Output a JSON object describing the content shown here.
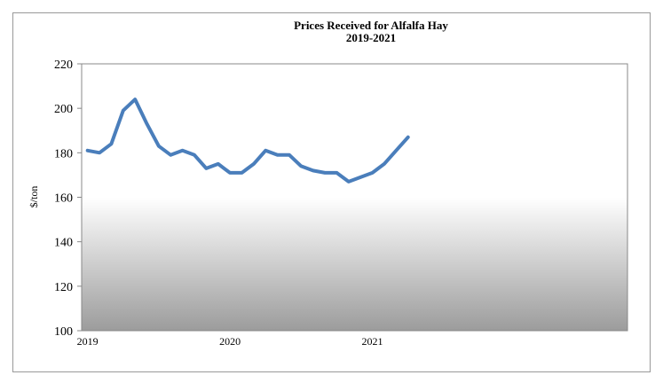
{
  "chart_data": {
    "type": "line",
    "title": "Prices Received for Alfalfa Hay",
    "subtitle": "2019-2021",
    "y_label": "$/ton",
    "categories": [
      "2019",
      null,
      null,
      null,
      null,
      null,
      null,
      null,
      null,
      null,
      null,
      null,
      "2020",
      null,
      null,
      null,
      null,
      null,
      null,
      null,
      null,
      null,
      null,
      null,
      "2021",
      null,
      null,
      null,
      null,
      null,
      null,
      null,
      null,
      null,
      null,
      null,
      null,
      null,
      null,
      null,
      null,
      null,
      null,
      null,
      null,
      null
    ],
    "series": [
      {
        "name": "Alfalfa Hay",
        "color": "#4a7ebb",
        "values": [
          181,
          180,
          184,
          199,
          204,
          193,
          183,
          179,
          181,
          179,
          173,
          175,
          171,
          171,
          175,
          181,
          179,
          179,
          174,
          172,
          171,
          171,
          167,
          169,
          171,
          175,
          181,
          187,
          null,
          null,
          null,
          null,
          null,
          null,
          null,
          null,
          null,
          null,
          null,
          null,
          null,
          null,
          null,
          null,
          null,
          null
        ]
      }
    ],
    "ylim": [
      100,
      220
    ],
    "yticks": [
      100,
      120,
      140,
      160,
      180,
      200,
      220
    ],
    "grid": false
  }
}
